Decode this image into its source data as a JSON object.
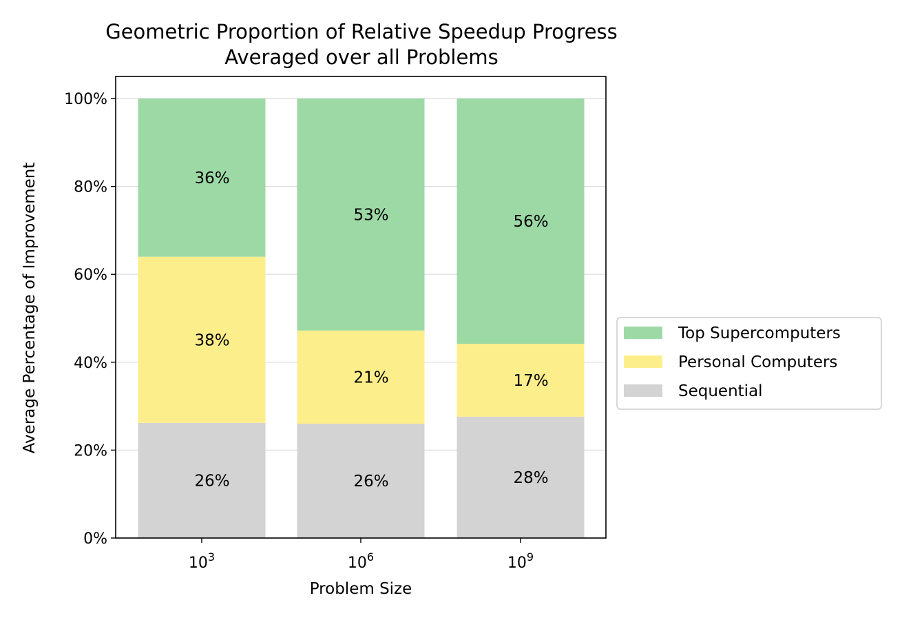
{
  "chart_data": {
    "type": "bar",
    "stacked": true,
    "title": "Geometric Proportion of Relative Speedup Progress",
    "subtitle": "Averaged over all Problems",
    "xlabel": "Problem Size",
    "ylabel": "Average Percentage of Improvement",
    "categories": [
      {
        "base": "10",
        "exp": "3"
      },
      {
        "base": "10",
        "exp": "6"
      },
      {
        "base": "10",
        "exp": "9"
      }
    ],
    "ylim": [
      0,
      100
    ],
    "yticks": [
      {
        "value": 0,
        "label": "0%"
      },
      {
        "value": 20,
        "label": "20%"
      },
      {
        "value": 40,
        "label": "40%"
      },
      {
        "value": 60,
        "label": "60%"
      },
      {
        "value": 80,
        "label": "80%"
      },
      {
        "value": 100,
        "label": "100%"
      }
    ],
    "grid": "horizontal",
    "legend_position": "right",
    "series": [
      {
        "name": "Sequential",
        "color": "#d3d3d3",
        "values": [
          26.2,
          26.0,
          27.6
        ],
        "labels": [
          "26%",
          "26%",
          "28%"
        ]
      },
      {
        "name": "Personal Computers",
        "color": "#fdee8c",
        "values": [
          37.8,
          21.2,
          16.6
        ],
        "labels": [
          "38%",
          "21%",
          "17%"
        ]
      },
      {
        "name": "Top Supercomputers",
        "color": "#9dd9a5",
        "values": [
          36.0,
          52.8,
          55.8
        ],
        "labels": [
          "36%",
          "53%",
          "56%"
        ]
      }
    ],
    "legend_order": [
      "Top Supercomputers",
      "Personal Computers",
      "Sequential"
    ]
  }
}
